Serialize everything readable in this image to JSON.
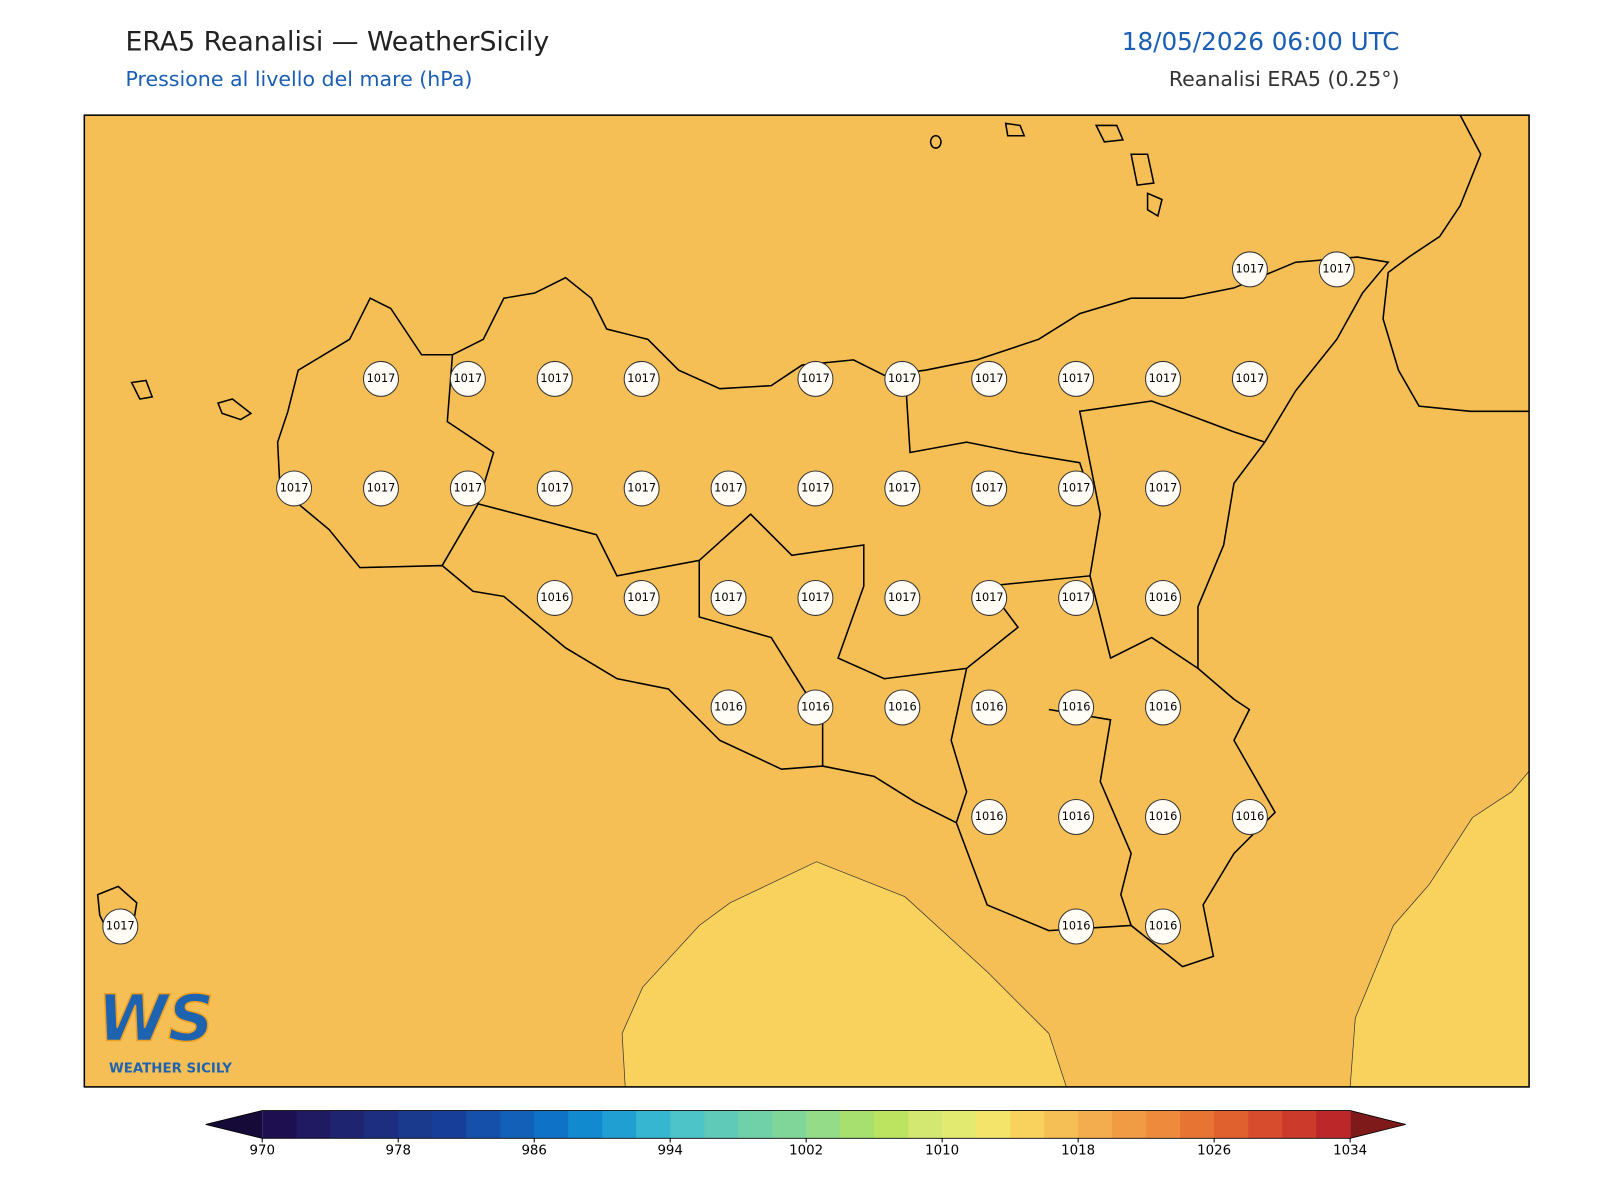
{
  "header": {
    "title": "ERA5 Reanalisi — WeatherSicily",
    "subtitle": "Pressione al livello del mare (hPa)",
    "date": "18/05/2026 06:00 UTC",
    "source": "Reanalisi ERA5 (0.25°)"
  },
  "map": {
    "pressure_labels": [
      1017,
      1017,
      1017,
      1017,
      1017,
      1017,
      1017,
      1017,
      1017,
      1017,
      1017,
      1017,
      1017,
      1017,
      1017,
      1017,
      1017,
      1017,
      1017,
      1017,
      1017,
      1017,
      1017,
      1016,
      1017,
      1017,
      1017,
      1017,
      1017,
      1017,
      1016,
      1016,
      1016,
      1016,
      1016,
      1016,
      1016,
      1016,
      1016,
      1016,
      1016,
      1017,
      1016,
      1016
    ]
  },
  "logo": {
    "mark": "WS",
    "name": "WEATHER SICILY"
  },
  "colorbar": {
    "lim": [
      970,
      1034
    ],
    "ticks": [
      970,
      978,
      986,
      994,
      1002,
      1010,
      1018,
      1026,
      1034
    ],
    "colors": [
      "#1e0f50",
      "#201a62",
      "#1f2470",
      "#1d2e80",
      "#1a3a8e",
      "#173f9a",
      "#1550aa",
      "#1260b8",
      "#0e72c6",
      "#128ad0",
      "#209fd3",
      "#36b6d0",
      "#4dc4c8",
      "#60cab8",
      "#70d0a8",
      "#80d698",
      "#94dc88",
      "#a8e070",
      "#bde460",
      "#d2e870",
      "#e2ea70",
      "#f4e46a",
      "#f9d25e",
      "#f5bf55",
      "#f3ad4e",
      "#f09c44",
      "#ee8a3c",
      "#e87434",
      "#e0602e",
      "#d64c2c",
      "#cc3a2c",
      "#bc282a"
    ],
    "under_color": "#150a38",
    "over_color": "#7f1a1a"
  }
}
